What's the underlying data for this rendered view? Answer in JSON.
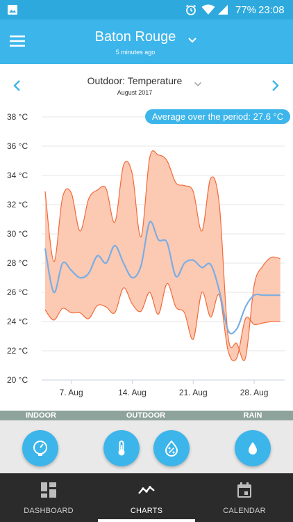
{
  "status_bar": {
    "battery": "77%",
    "time": "23:08",
    "icons": [
      "image-icon",
      "alarm-icon",
      "wifi-icon",
      "signal-icon",
      "battery-icon"
    ]
  },
  "header": {
    "location": "Baton Rouge",
    "updated": "5 minutes ago"
  },
  "sub_header": {
    "title": "Outdoor: Temperature",
    "period": "August 2017"
  },
  "chart_data": {
    "type": "area",
    "x_ticks": [
      "7. Aug",
      "14. Aug",
      "21. Aug",
      "28. Aug"
    ],
    "y_ticks": [
      "38 °C",
      "36 °C",
      "34 °C",
      "32 °C",
      "30 °C",
      "28 °C",
      "26 °C",
      "24 °C",
      "22 °C",
      "20 °C"
    ],
    "ylim": [
      20,
      38
    ],
    "xlim": [
      3.6,
      31.5
    ],
    "annotation": "Average over the period: 27.6 °C",
    "x": [
      4,
      5,
      6,
      7,
      8,
      9,
      10,
      11,
      12,
      13,
      14,
      15,
      16,
      17,
      18,
      19,
      20,
      21,
      22,
      23,
      24,
      25,
      26,
      27,
      28,
      29,
      30,
      31
    ],
    "series": [
      {
        "values": [
          32.9,
          28.1,
          32.5,
          32.8,
          30.2,
          32.4,
          33.0,
          33.1,
          30.8,
          34.7,
          34.1,
          29.8,
          35.2,
          35.4,
          35.0,
          33.5,
          33.3,
          32.9,
          30.2,
          33.8,
          32.0,
          23.0,
          22.5,
          21.5,
          26.5,
          27.8,
          28.4,
          28.3
        ]
      },
      {
        "values": [
          24.8,
          24.1,
          24.9,
          24.6,
          24.6,
          24.2,
          25.1,
          25.0,
          24.6,
          26.3,
          25.2,
          24.7,
          26.0,
          24.5,
          26.6,
          25.0,
          24.6,
          22.8,
          26.0,
          24.3,
          25.8,
          22.0,
          21.5,
          24.2,
          23.8,
          23.9,
          24.0,
          24.0
        ]
      },
      {
        "values": [
          29.0,
          26.0,
          28.0,
          27.5,
          27.0,
          27.3,
          28.5,
          28.0,
          29.2,
          28.0,
          27.0,
          27.8,
          30.8,
          29.6,
          29.4,
          27.1,
          28.0,
          28.2,
          27.7,
          27.9,
          26.1,
          23.4,
          23.5,
          25.0,
          25.8,
          25.8,
          25.8,
          25.8
        ]
      }
    ],
    "colors": {
      "band_fill": "#fcc9b3",
      "band_stroke": "#f26a3b",
      "line": "#7aaee3",
      "badge": "#3cb5ea"
    }
  },
  "sections": {
    "indoor": "INDOOR",
    "outdoor": "OUTDOOR",
    "rain": "RAIN"
  },
  "bottom_nav": {
    "dashboard": "DASHBOARD",
    "charts": "CHARTS",
    "calendar": "CALENDAR"
  }
}
